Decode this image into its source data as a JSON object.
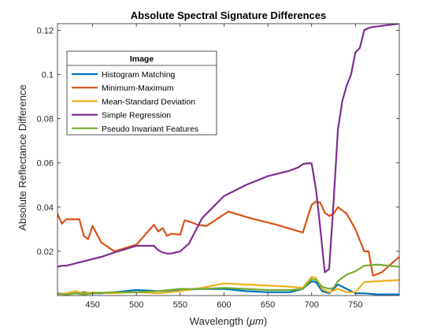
{
  "chart_data": {
    "type": "line",
    "title": "Absolute Spectral Signature Differences",
    "xlabel": "Wavelength (",
    "xlabel_unit": "μm",
    "xlabel_close": ")",
    "ylabel": "Absolute Reflectance Difference",
    "xlim": [
      410,
      800
    ],
    "ylim": [
      0,
      0.123
    ],
    "x_ticks": [
      450,
      500,
      550,
      600,
      650,
      700,
      750
    ],
    "x_tick_labels": [
      "450",
      "500",
      "550",
      "600",
      "650",
      "700",
      "750"
    ],
    "y_ticks": [
      0.02,
      0.04,
      0.06,
      0.08,
      0.1,
      0.12
    ],
    "y_tick_labels": [
      "0.02",
      "0.04",
      "0.06",
      "0.08",
      "0.1",
      "0.12"
    ],
    "grid": false,
    "legend_placement": "top-left",
    "legend_title": "Image",
    "series": [
      {
        "name": "Histogram Matching",
        "color": "#0072BD",
        "x": [
          410,
          420,
          430,
          440,
          450,
          460,
          475,
          500,
          525,
          550,
          575,
          600,
          625,
          650,
          675,
          690,
          700,
          705,
          712,
          720,
          730,
          740,
          750,
          760,
          775,
          800
        ],
        "y": [
          0.001,
          0.0005,
          0.001,
          0.0015,
          0.001,
          0.001,
          0.0015,
          0.0025,
          0.002,
          0.0025,
          0.003,
          0.003,
          0.002,
          0.0015,
          0.0015,
          0.003,
          0.0065,
          0.006,
          0.002,
          0.001,
          0.005,
          0.003,
          0.001,
          0.001,
          0.0005,
          0.0005
        ]
      },
      {
        "name": "Minimum-Maximum",
        "color": "#D95319",
        "x": [
          410,
          415,
          420,
          430,
          435,
          440,
          445,
          450,
          460,
          475,
          500,
          520,
          525,
          530,
          535,
          540,
          550,
          555,
          560,
          570,
          580,
          605,
          630,
          660,
          690,
          700,
          705,
          710,
          715,
          720,
          725,
          730,
          740,
          750,
          760,
          765,
          770,
          780,
          790,
          800
        ],
        "y": [
          0.037,
          0.0325,
          0.0345,
          0.0345,
          0.0345,
          0.027,
          0.0255,
          0.0315,
          0.024,
          0.02,
          0.023,
          0.032,
          0.029,
          0.0305,
          0.027,
          0.028,
          0.0275,
          0.034,
          0.0335,
          0.032,
          0.0315,
          0.038,
          0.035,
          0.032,
          0.0285,
          0.041,
          0.0425,
          0.042,
          0.0375,
          0.036,
          0.037,
          0.04,
          0.037,
          0.03,
          0.02,
          0.02,
          0.009,
          0.0105,
          0.014,
          0.0175
        ]
      },
      {
        "name": "Mean-Standard Deviation",
        "color": "#EDB120",
        "x": [
          410,
          420,
          430,
          440,
          450,
          470,
          500,
          525,
          550,
          575,
          600,
          625,
          650,
          675,
          690,
          700,
          705,
          712,
          720,
          730,
          740,
          750,
          760,
          775,
          800
        ],
        "y": [
          0.0005,
          0.001,
          0.002,
          0.001,
          0.0015,
          0.001,
          0.0015,
          0.001,
          0.002,
          0.0035,
          0.0055,
          0.005,
          0.0045,
          0.004,
          0.0035,
          0.0085,
          0.008,
          0.003,
          0.0015,
          0.003,
          0.0015,
          0.0015,
          0.006,
          0.0065,
          0.007
        ]
      },
      {
        "name": "Simple Regression",
        "color": "#7E2F8E",
        "x": [
          410,
          415,
          420,
          430,
          440,
          450,
          460,
          475,
          500,
          520,
          525,
          530,
          535,
          540,
          550,
          560,
          575,
          600,
          625,
          650,
          675,
          685,
          690,
          695,
          700,
          705,
          710,
          715,
          720,
          725,
          730,
          735,
          740,
          745,
          750,
          755,
          760,
          765,
          770,
          780,
          790,
          800
        ],
        "y": [
          0.013,
          0.0135,
          0.0135,
          0.0145,
          0.0155,
          0.0165,
          0.0175,
          0.0195,
          0.0225,
          0.0225,
          0.0205,
          0.0195,
          0.019,
          0.019,
          0.02,
          0.0235,
          0.035,
          0.045,
          0.05,
          0.054,
          0.0565,
          0.058,
          0.0595,
          0.0598,
          0.0598,
          0.048,
          0.03,
          0.0105,
          0.012,
          0.042,
          0.075,
          0.088,
          0.095,
          0.1,
          0.11,
          0.112,
          0.12,
          0.121,
          0.1215,
          0.122,
          0.1225,
          0.123
        ]
      },
      {
        "name": "Pseudo Invariant Features",
        "color": "#77AC30",
        "x": [
          410,
          420,
          430,
          440,
          450,
          470,
          500,
          525,
          550,
          575,
          600,
          625,
          650,
          675,
          690,
          700,
          705,
          712,
          720,
          725,
          730,
          740,
          750,
          760,
          775,
          800
        ],
        "y": [
          0.001,
          0.0005,
          0.001,
          0.0005,
          0.001,
          0.0015,
          0.0015,
          0.002,
          0.003,
          0.003,
          0.0035,
          0.003,
          0.0025,
          0.0025,
          0.003,
          0.0075,
          0.007,
          0.004,
          0.003,
          0.0035,
          0.0065,
          0.0095,
          0.011,
          0.0135,
          0.014,
          0.013
        ]
      }
    ]
  }
}
